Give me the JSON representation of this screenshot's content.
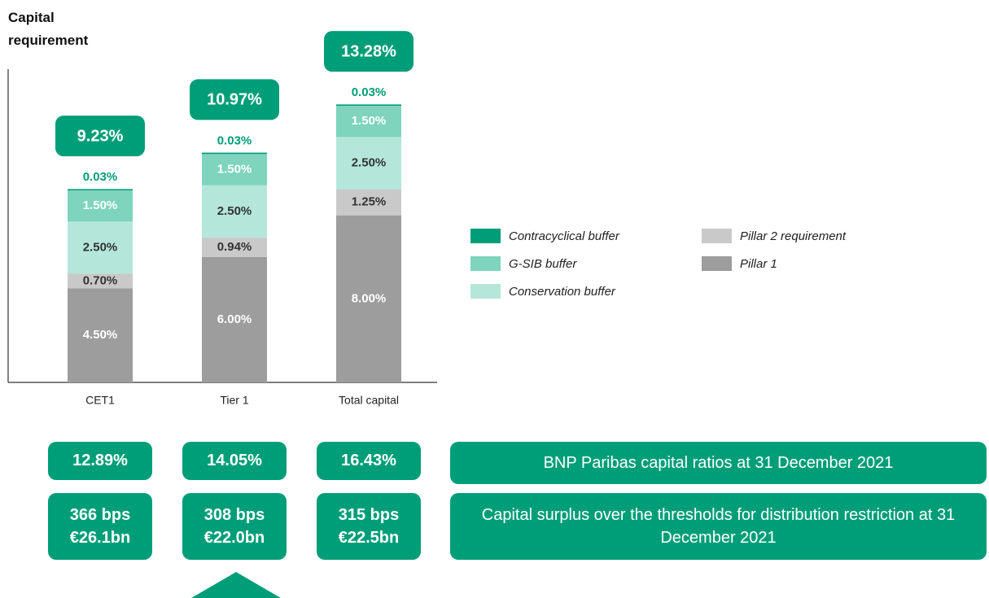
{
  "chart_data": {
    "type": "bar",
    "stacked": true,
    "title": "Capital requirement",
    "categories": [
      "CET1",
      "Tier 1",
      "Total capital"
    ],
    "ylim": [
      0,
      15
    ],
    "series": [
      {
        "name": "Pillar 1",
        "color": "#9d9d9d",
        "values": [
          4.5,
          6,
          8
        ],
        "value_labels": [
          "4.50%",
          "6.00%",
          "8.00%"
        ]
      },
      {
        "name": "Pillar 2 requirement",
        "color": "#c9c9c9",
        "values": [
          0.7,
          0.94,
          1.25
        ],
        "value_labels": [
          "0.70%",
          "0.94%",
          "1.25%"
        ]
      },
      {
        "name": "Conservation buffer",
        "color": "#b4e7d9",
        "values": [
          2.5,
          2.5,
          2.5
        ],
        "value_labels": [
          "2.50%",
          "2.50%",
          "2.50%"
        ]
      },
      {
        "name": "G-SIB buffer",
        "color": "#7ed4bd",
        "values": [
          1.5,
          1.5,
          1.5
        ],
        "value_labels": [
          "1.50%",
          "1.50%",
          "1.50%"
        ]
      },
      {
        "name": "Contracyclical buffer",
        "color": "#009e78",
        "values": [
          0.03,
          0.03,
          0.03
        ],
        "value_labels": [
          "0.03%",
          "0.03%",
          "0.03%"
        ]
      }
    ],
    "totals": {
      "values": [
        9.23,
        10.97,
        13.28
      ],
      "value_labels": [
        "9.23%",
        "10.97%",
        "13.28%"
      ]
    }
  },
  "ratios": {
    "caption": "BNP Paribas capital ratios at 31 December 2021",
    "values": [
      12.89,
      14.05,
      16.43
    ],
    "value_labels": [
      "12.89%",
      "14.05%",
      "16.43%"
    ]
  },
  "surplus": {
    "caption": "Capital surplus over the thresholds for distribution restriction at 31 December 2021",
    "bps": [
      366,
      308,
      315
    ],
    "bps_labels": [
      "366 bps",
      "308 bps",
      "315 bps"
    ],
    "amounts": [
      26.1,
      22.0,
      22.5
    ],
    "amount_labels": [
      "€26.1bn",
      "€22.0bn",
      "€22.5bn"
    ]
  }
}
